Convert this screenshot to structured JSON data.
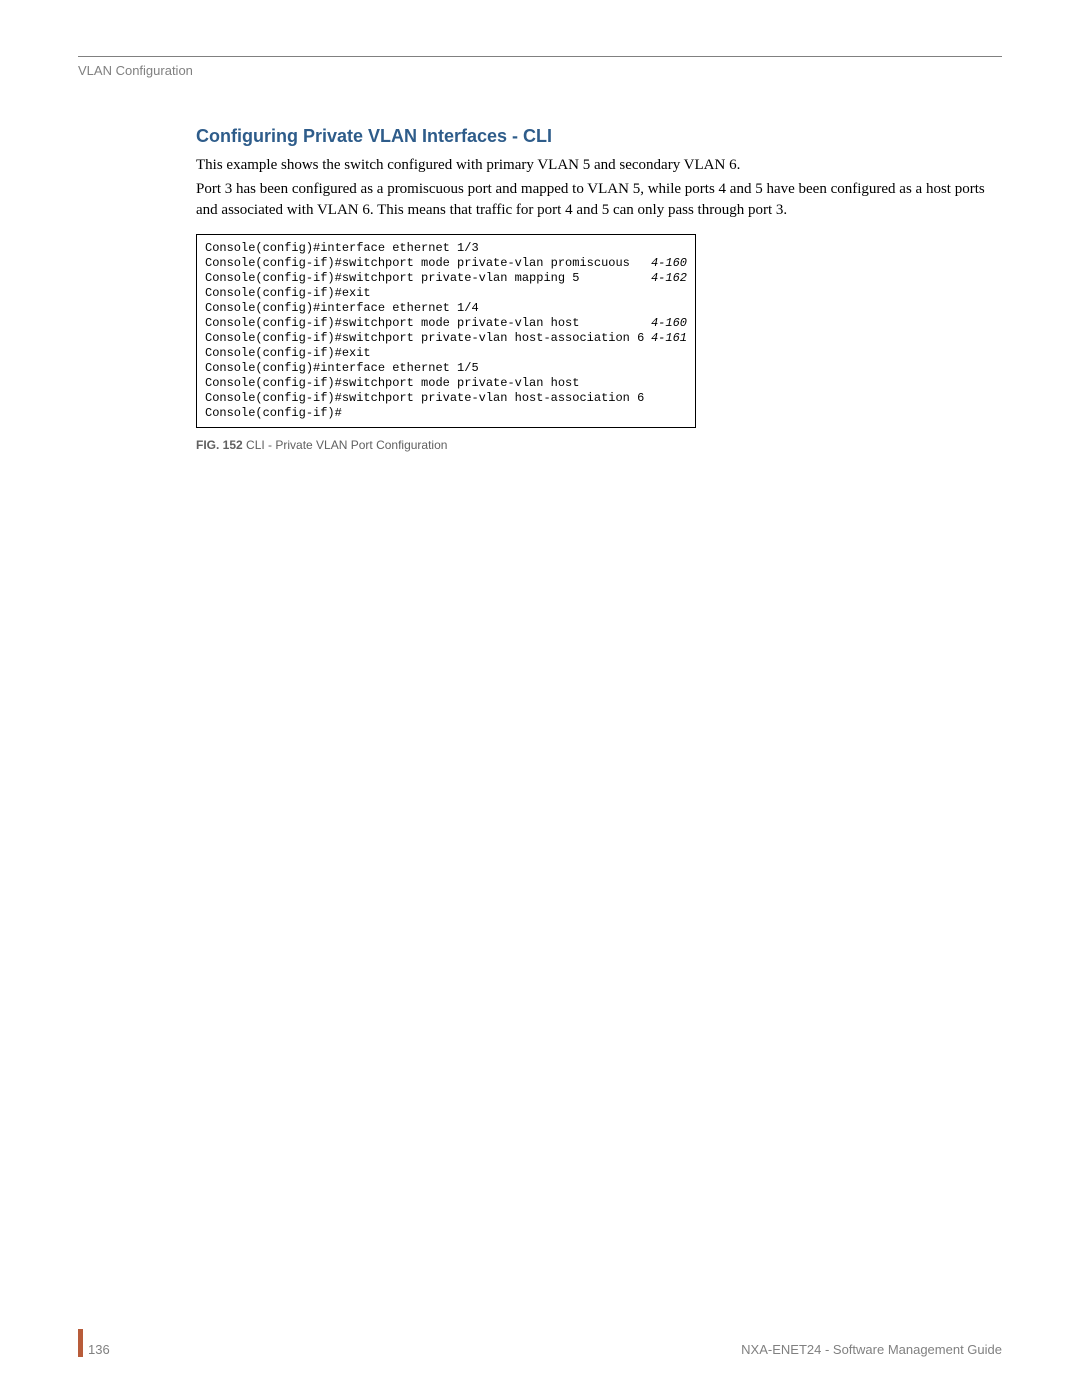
{
  "header": {
    "section_name": "VLAN Configuration"
  },
  "content": {
    "heading": "Configuring Private VLAN Interfaces - CLI",
    "paragraph1": "This example shows the switch configured with primary VLAN 5 and secondary VLAN 6.",
    "paragraph2": "Port 3 has been configured as a promiscuous port and mapped to VLAN 5, while ports 4 and 5 have been configured as a host ports and associated with VLAN 6. This means that traffic for port 4 and 5 can only pass through port 3."
  },
  "code": {
    "lines": [
      {
        "text": "Console(config)#interface ethernet 1/3",
        "ref": ""
      },
      {
        "text": "Console(config-if)#switchport mode private-vlan promiscuous",
        "ref": "4-160"
      },
      {
        "text": "Console(config-if)#switchport private-vlan mapping 5",
        "ref": "4-162"
      },
      {
        "text": "Console(config-if)#exit",
        "ref": ""
      },
      {
        "text": "Console(config)#interface ethernet 1/4",
        "ref": ""
      },
      {
        "text": "Console(config-if)#switchport mode private-vlan host",
        "ref": "4-160"
      },
      {
        "text": "Console(config-if)#switchport private-vlan host-association 6",
        "ref": "4-161"
      },
      {
        "text": "Console(config-if)#exit",
        "ref": ""
      },
      {
        "text": "Console(config)#interface ethernet 1/5",
        "ref": ""
      },
      {
        "text": "Console(config-if)#switchport mode private-vlan host",
        "ref": ""
      },
      {
        "text": "Console(config-if)#switchport private-vlan host-association 6",
        "ref": ""
      },
      {
        "text": "Console(config-if)#",
        "ref": ""
      }
    ]
  },
  "figure": {
    "label": "FIG. 152",
    "caption": "  CLI - Private VLAN Port Configuration"
  },
  "footer": {
    "page_number": "136",
    "guide_name": "NXA-ENET24 - Software Management Guide"
  },
  "colors": {
    "heading_color": "#2e5c8a",
    "text_gray": "#808080",
    "caption_gray": "#606060",
    "accent_orange": "#b85c3a",
    "body_text": "#000000",
    "background": "#ffffff"
  }
}
